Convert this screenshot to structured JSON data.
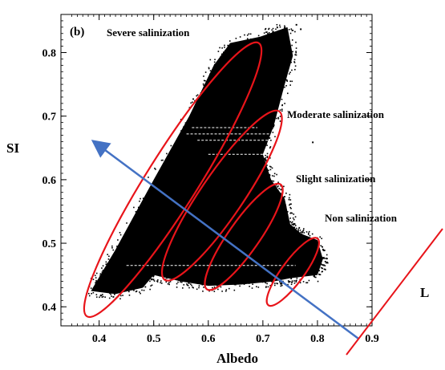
{
  "chart_data": {
    "type": "scatter",
    "panel_label": "(b)",
    "xlabel": "Albedo",
    "ylabel": "SI",
    "xlim": [
      0.33,
      0.9
    ],
    "ylim": [
      0.37,
      0.86
    ],
    "xticks": [
      "0.4",
      "0.5",
      "0.6",
      "0.7",
      "0.8",
      "0.9"
    ],
    "yticks": [
      "0.4",
      "0.5",
      "0.6",
      "0.7",
      "0.8"
    ],
    "point_color": "#000000",
    "annotation_color": "#e8141a",
    "arrow_color": "#4472c4",
    "density_outline": [
      [
        0.385,
        0.425
      ],
      [
        0.43,
        0.49
      ],
      [
        0.5,
        0.6
      ],
      [
        0.565,
        0.7
      ],
      [
        0.61,
        0.78
      ],
      [
        0.64,
        0.815
      ],
      [
        0.695,
        0.825
      ],
      [
        0.745,
        0.84
      ],
      [
        0.755,
        0.795
      ],
      [
        0.74,
        0.75
      ],
      [
        0.72,
        0.685
      ],
      [
        0.7,
        0.64
      ],
      [
        0.715,
        0.6
      ],
      [
        0.74,
        0.57
      ],
      [
        0.75,
        0.53
      ],
      [
        0.77,
        0.515
      ],
      [
        0.8,
        0.505
      ],
      [
        0.81,
        0.475
      ],
      [
        0.8,
        0.45
      ],
      [
        0.75,
        0.445
      ],
      [
        0.72,
        0.44
      ],
      [
        0.66,
        0.435
      ],
      [
        0.6,
        0.433
      ],
      [
        0.55,
        0.44
      ],
      [
        0.5,
        0.45
      ],
      [
        0.48,
        0.43
      ],
      [
        0.43,
        0.42
      ]
    ],
    "regions": [
      {
        "label": "Severe salinization",
        "center": [
          0.535,
          0.6
        ],
        "x_span": [
          0.385,
          0.7
        ],
        "y_span": [
          0.43,
          0.86
        ]
      },
      {
        "label": "Moderate salinization",
        "center": [
          0.625,
          0.575
        ],
        "x_span": [
          0.52,
          0.73
        ],
        "y_span": [
          0.44,
          0.705
        ]
      },
      {
        "label": "Slight salinization",
        "center": [
          0.665,
          0.51
        ],
        "x_span": [
          0.6,
          0.735
        ],
        "y_span": [
          0.425,
          0.59
        ]
      },
      {
        "label": "Non salinization",
        "center": [
          0.755,
          0.455
        ],
        "x_span": [
          0.71,
          0.8
        ],
        "y_span": [
          0.41,
          0.515
        ]
      }
    ],
    "arrow": {
      "from": [
        0.875,
        0.35
      ],
      "to": [
        0.39,
        0.66
      ]
    },
    "line_label": "L"
  }
}
